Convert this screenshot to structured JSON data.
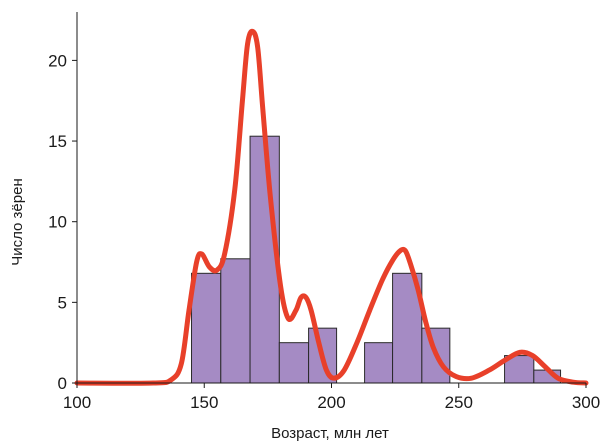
{
  "chart_data": {
    "type": "bar",
    "xlabel": "Возраст, млн лет",
    "ylabel": "Число зёрен",
    "xlim": [
      100,
      300
    ],
    "ylim": [
      0,
      23
    ],
    "x_ticks": [
      100,
      150,
      200,
      250,
      300
    ],
    "y_ticks": [
      0,
      5,
      10,
      15,
      20
    ],
    "grid": false,
    "bar_color": "#a58bc4",
    "bar_edge_color": "#2a2a2a",
    "curve_color": "#e8402a",
    "bars": [
      {
        "x0": 145,
        "x1": 156.5,
        "value": 6.8
      },
      {
        "x0": 156.5,
        "x1": 168,
        "value": 7.7
      },
      {
        "x0": 168,
        "x1": 179.5,
        "value": 15.3
      },
      {
        "x0": 179.5,
        "x1": 191,
        "value": 2.5
      },
      {
        "x0": 191,
        "x1": 202,
        "value": 3.4
      },
      {
        "x0": 213,
        "x1": 224,
        "value": 2.5
      },
      {
        "x0": 224,
        "x1": 235.5,
        "value": 6.8
      },
      {
        "x0": 235.5,
        "x1": 246.5,
        "value": 3.4
      },
      {
        "x0": 268,
        "x1": 279.5,
        "value": 1.7
      },
      {
        "x0": 279.5,
        "x1": 290,
        "value": 0.8
      }
    ],
    "density_curve": [
      [
        100,
        0
      ],
      [
        130,
        0
      ],
      [
        137,
        0.2
      ],
      [
        141,
        1.2
      ],
      [
        144,
        4.5
      ],
      [
        147,
        7.5
      ],
      [
        149,
        8.0
      ],
      [
        152,
        7.2
      ],
      [
        155,
        7.0
      ],
      [
        158,
        8.0
      ],
      [
        162,
        12.0
      ],
      [
        165,
        17.5
      ],
      [
        167,
        21.0
      ],
      [
        169,
        21.8
      ],
      [
        171,
        20.8
      ],
      [
        173,
        17.0
      ],
      [
        176,
        11.5
      ],
      [
        180,
        6.0
      ],
      [
        183,
        4.0
      ],
      [
        186,
        4.5
      ],
      [
        188,
        5.3
      ],
      [
        190,
        5.3
      ],
      [
        192,
        4.5
      ],
      [
        195,
        2.5
      ],
      [
        198,
        0.8
      ],
      [
        201,
        0.3
      ],
      [
        205,
        0.8
      ],
      [
        210,
        2.5
      ],
      [
        215,
        4.5
      ],
      [
        220,
        6.4
      ],
      [
        224,
        7.6
      ],
      [
        227,
        8.2
      ],
      [
        229,
        8.2
      ],
      [
        231,
        7.4
      ],
      [
        234,
        5.8
      ],
      [
        237,
        3.8
      ],
      [
        240,
        2.2
      ],
      [
        244,
        1.0
      ],
      [
        249,
        0.4
      ],
      [
        255,
        0.3
      ],
      [
        262,
        0.8
      ],
      [
        268,
        1.4
      ],
      [
        274,
        1.9
      ],
      [
        279,
        1.7
      ],
      [
        284,
        1.0
      ],
      [
        289,
        0.3
      ],
      [
        295,
        0.05
      ],
      [
        300,
        0
      ]
    ]
  }
}
